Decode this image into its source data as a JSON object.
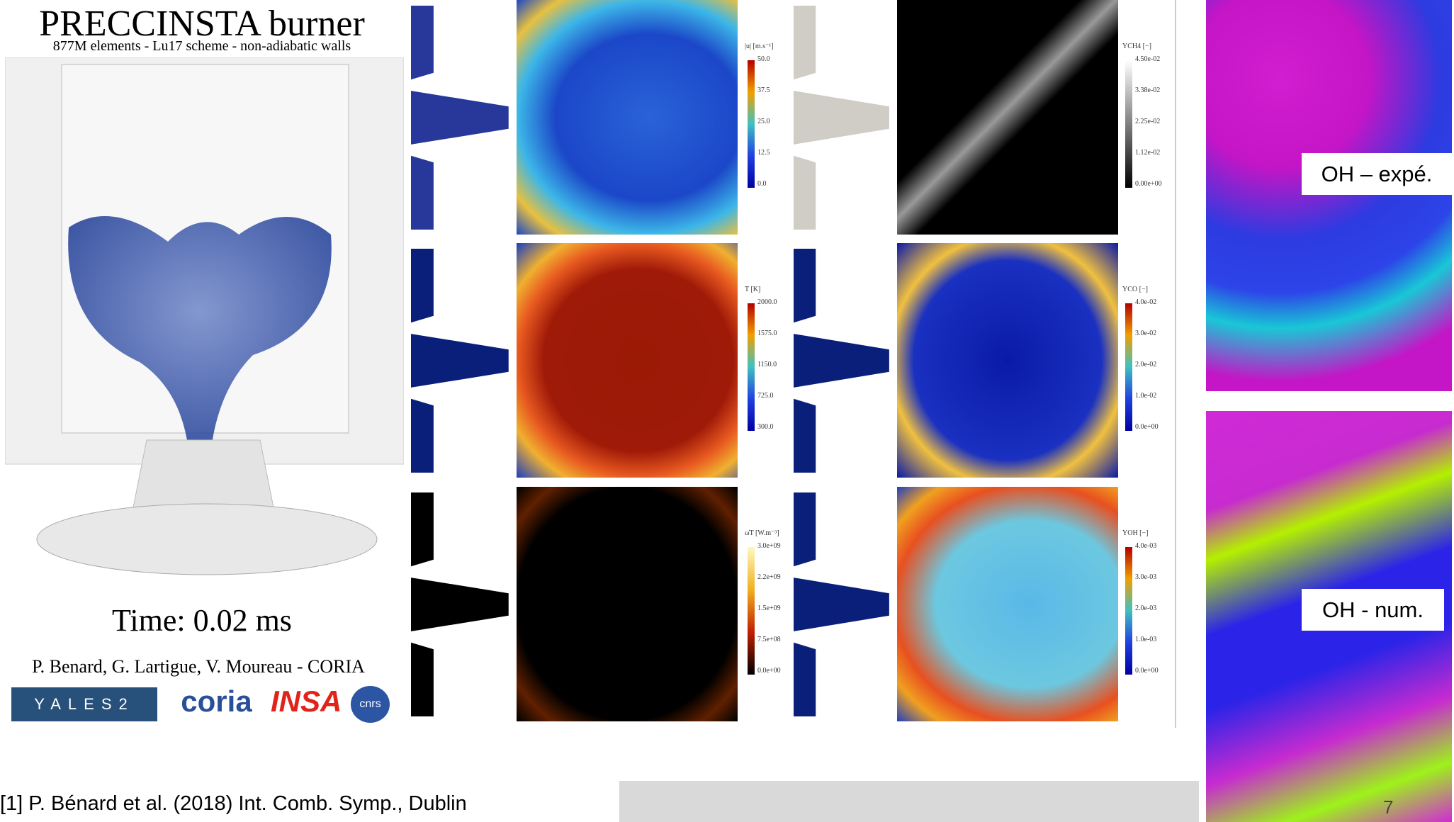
{
  "title": "PRECCINSTA burner",
  "subtitle": "877M elements - Lu17 scheme - non-adiabatic walls",
  "time": "Time: 0.02 ms",
  "credits": "P. Benard, G. Lartigue, V. Moureau - CORIA",
  "logos": [
    "YALES2",
    "coria",
    "INSA",
    "cnrs"
  ],
  "panels": [
    {
      "label": "|u| [m.s⁻¹]",
      "ticks": [
        "50.0",
        "37.5",
        "25.0",
        "12.5",
        "0.0"
      ]
    },
    {
      "label": "YCH4 [−]",
      "ticks": [
        "4.50e-02",
        "3.38e-02",
        "2.25e-02",
        "1.12e-02",
        "0.00e+00"
      ]
    },
    {
      "label": "T [K]",
      "ticks": [
        "2000.0",
        "1575.0",
        "1150.0",
        "725.0",
        "300.0"
      ]
    },
    {
      "label": "YCO [−]",
      "ticks": [
        "4.0e-02",
        "3.0e-02",
        "2.0e-02",
        "1.0e-02",
        "0.0e+00"
      ]
    },
    {
      "label": "ω̇T [W.m⁻³]",
      "ticks": [
        "3.0e+09",
        "2.2e+09",
        "1.5e+09",
        "7.5e+08",
        "0.0e+00"
      ]
    },
    {
      "label": "YOH [−]",
      "ticks": [
        "4.0e-03",
        "3.0e-03",
        "2.0e-03",
        "1.0e-03",
        "0.0e+00"
      ]
    }
  ],
  "oh_exp": "OH – expé.",
  "oh_num": "OH - num.",
  "reference": "[1] P. Bénard et al. (2018) Int. Comb. Symp., Dublin",
  "page_number": "7"
}
